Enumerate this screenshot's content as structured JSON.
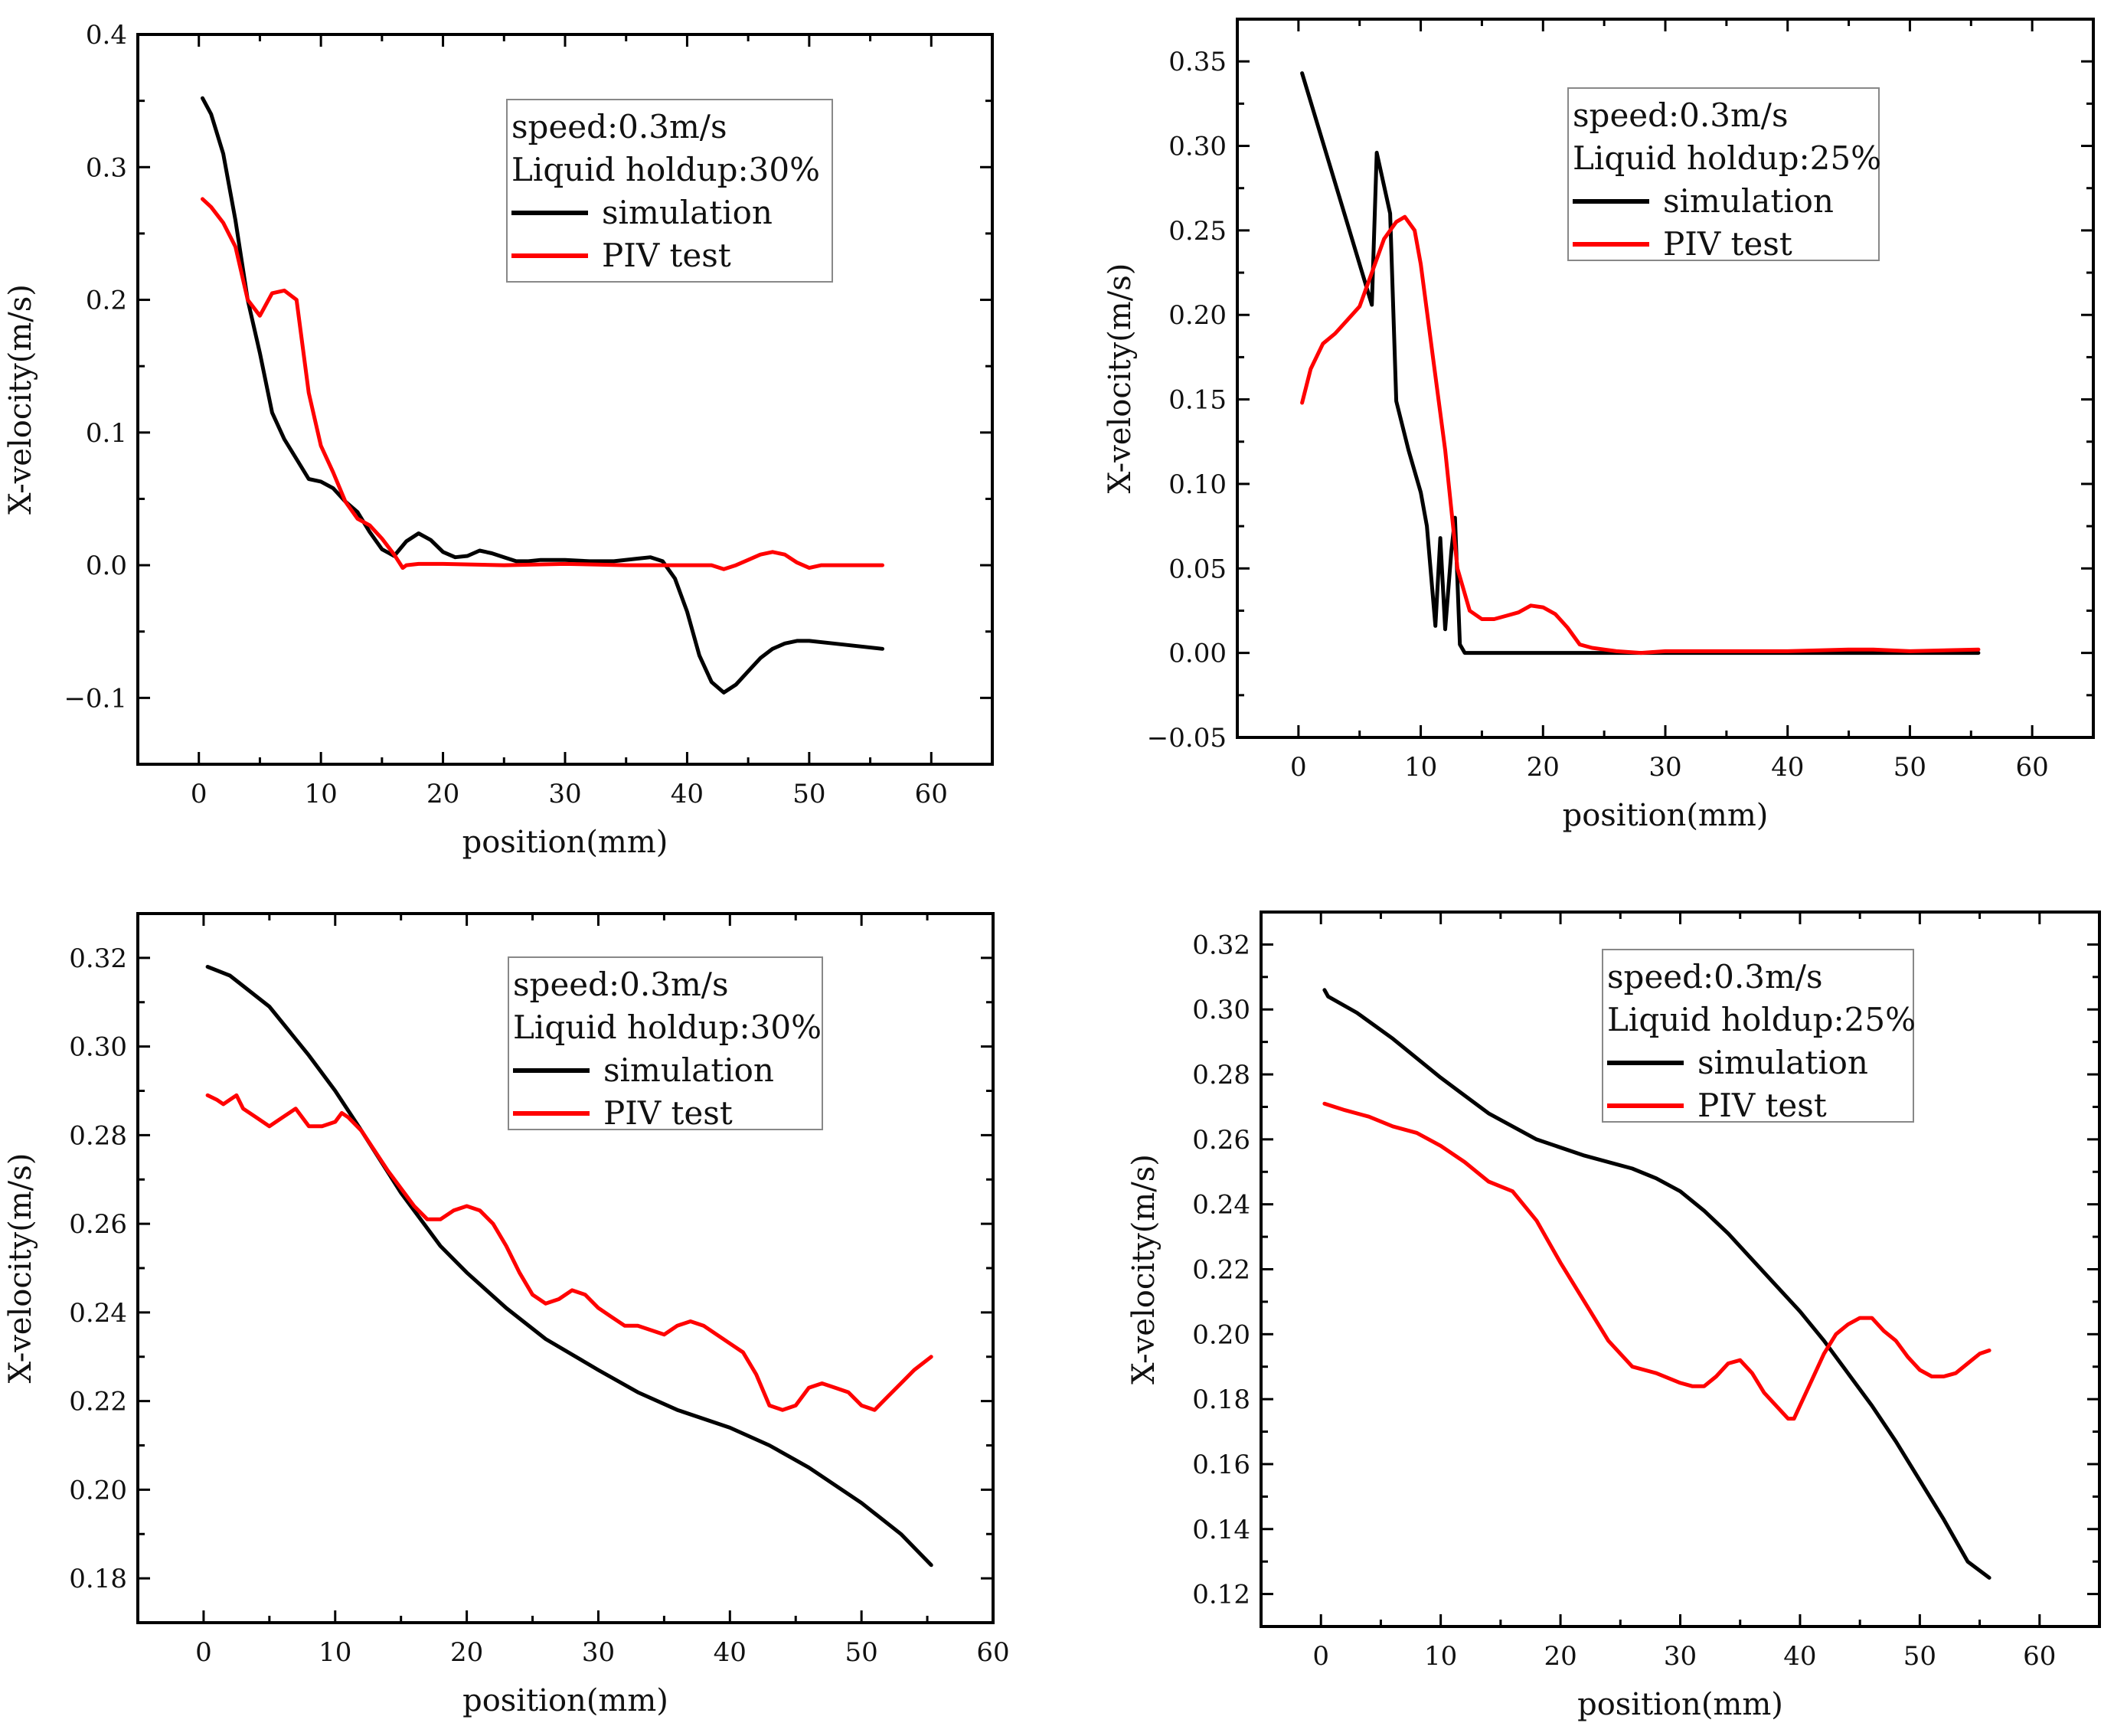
{
  "colors": {
    "simulation": "#000000",
    "piv": "#ff0000",
    "axis": "#000000",
    "legend_border": "#888888"
  },
  "chart_data": [
    {
      "type": "line",
      "xlabel": "position(mm)",
      "ylabel": "X-velocity(m/s)",
      "xlim": [
        -5,
        65
      ],
      "ylim": [
        -0.15,
        0.4
      ],
      "xticks": [
        0,
        10,
        20,
        30,
        40,
        50,
        60
      ],
      "xtick_labels": [
        "0",
        "10",
        "20",
        "30",
        "40",
        "50",
        "60"
      ],
      "yticks": [
        -0.1,
        0.0,
        0.1,
        0.2,
        0.3,
        0.4
      ],
      "ytick_labels": [
        "−0.1",
        "0.0",
        "0.1",
        "0.2",
        "0.3",
        "0.4"
      ],
      "legend": {
        "lines": [
          "speed:0.3m/s",
          "Liquid holdup:30%"
        ],
        "entries": [
          "simulation",
          "PIV test"
        ],
        "position": "top-right"
      },
      "series": [
        {
          "name": "simulation",
          "color": "#000000",
          "x": [
            0.3,
            1,
            2,
            3,
            4,
            5,
            6,
            7,
            8,
            9,
            10,
            11,
            12,
            13,
            14,
            15,
            16,
            17,
            18,
            19,
            20,
            21,
            22,
            23,
            24,
            25,
            26,
            27,
            28,
            30,
            32,
            34,
            36,
            37,
            38,
            39,
            40,
            41,
            42,
            43,
            44,
            45,
            46,
            47,
            48,
            49,
            50,
            52,
            54,
            56
          ],
          "y": [
            0.352,
            0.34,
            0.31,
            0.26,
            0.2,
            0.16,
            0.115,
            0.095,
            0.08,
            0.065,
            0.063,
            0.058,
            0.048,
            0.04,
            0.025,
            0.012,
            0.007,
            0.018,
            0.024,
            0.019,
            0.01,
            0.006,
            0.007,
            0.011,
            0.009,
            0.006,
            0.003,
            0.003,
            0.004,
            0.004,
            0.003,
            0.003,
            0.005,
            0.006,
            0.003,
            -0.01,
            -0.035,
            -0.068,
            -0.088,
            -0.096,
            -0.09,
            -0.08,
            -0.07,
            -0.063,
            -0.059,
            -0.057,
            -0.057,
            -0.059,
            -0.061,
            -0.063
          ]
        },
        {
          "name": "PIV test",
          "color": "#ff0000",
          "x": [
            0.3,
            1,
            2,
            3,
            4,
            5,
            6,
            7,
            8,
            9,
            10,
            11,
            12,
            13,
            14,
            15,
            16,
            16.7,
            17,
            18,
            20,
            25,
            30,
            35,
            38,
            40,
            42,
            43,
            44,
            45,
            46,
            47,
            48,
            49,
            50,
            51,
            52,
            54,
            56
          ],
          "y": [
            0.276,
            0.27,
            0.258,
            0.24,
            0.2,
            0.188,
            0.205,
            0.207,
            0.2,
            0.13,
            0.09,
            0.07,
            0.048,
            0.035,
            0.03,
            0.02,
            0.008,
            -0.002,
            0.0,
            0.001,
            0.001,
            0.0,
            0.001,
            0.0,
            0.0,
            0.0,
            0.0,
            -0.003,
            0.0,
            0.004,
            0.008,
            0.01,
            0.008,
            0.002,
            -0.002,
            0.0,
            0.0,
            0.0,
            0.0
          ]
        }
      ]
    },
    {
      "type": "line",
      "xlabel": "position(mm)",
      "ylabel": "X-velocity(m/s)",
      "xlim": [
        -5,
        65
      ],
      "ylim": [
        -0.05,
        0.375
      ],
      "xticks": [
        0,
        10,
        20,
        30,
        40,
        50,
        60
      ],
      "xtick_labels": [
        "0",
        "10",
        "20",
        "30",
        "40",
        "50",
        "60"
      ],
      "yticks": [
        -0.05,
        0.0,
        0.05,
        0.1,
        0.15,
        0.2,
        0.25,
        0.3,
        0.35
      ],
      "ytick_labels": [
        "−0.05",
        "0.00",
        "0.05",
        "0.10",
        "0.15",
        "0.20",
        "0.25",
        "0.30",
        "0.35"
      ],
      "legend": {
        "lines": [
          "speed:0.3m/s",
          "Liquid holdup:25%"
        ],
        "entries": [
          "simulation",
          "PIV test"
        ],
        "position": "top-right"
      },
      "series": [
        {
          "name": "simulation",
          "color": "#000000",
          "x": [
            0.3,
            6.0,
            6.4,
            7.5,
            8.0,
            9.0,
            10.0,
            10.5,
            11.2,
            11.6,
            12.0,
            12.5,
            12.8,
            13.2,
            13.6,
            20,
            30,
            40,
            50,
            55.6
          ],
          "y": [
            0.343,
            0.206,
            0.296,
            0.26,
            0.149,
            0.12,
            0.095,
            0.075,
            0.016,
            0.068,
            0.014,
            0.06,
            0.08,
            0.005,
            0.0,
            0.0,
            0.0,
            0.0,
            0.0,
            0.0
          ]
        },
        {
          "name": "PIV test",
          "color": "#ff0000",
          "x": [
            0.3,
            1,
            2,
            3,
            4,
            5,
            6,
            7,
            8,
            8.7,
            9.5,
            10,
            11,
            12,
            12.5,
            13,
            14,
            15,
            16,
            17,
            18,
            19,
            20,
            21,
            22,
            23,
            24,
            25,
            26,
            28,
            30,
            40,
            45,
            47,
            50,
            55.6
          ],
          "y": [
            0.148,
            0.168,
            0.183,
            0.189,
            0.197,
            0.205,
            0.225,
            0.245,
            0.255,
            0.258,
            0.25,
            0.23,
            0.175,
            0.12,
            0.085,
            0.05,
            0.025,
            0.02,
            0.02,
            0.022,
            0.024,
            0.028,
            0.027,
            0.023,
            0.015,
            0.005,
            0.003,
            0.002,
            0.001,
            0.0,
            0.001,
            0.001,
            0.002,
            0.002,
            0.001,
            0.002
          ]
        }
      ]
    },
    {
      "type": "line",
      "xlabel": "position(mm)",
      "ylabel": "X-velocity(m/s)",
      "xlim": [
        -5,
        60
      ],
      "ylim": [
        0.17,
        0.33
      ],
      "xticks": [
        0,
        10,
        20,
        30,
        40,
        50,
        60
      ],
      "xtick_labels": [
        "0",
        "10",
        "20",
        "30",
        "40",
        "50",
        "60"
      ],
      "yticks": [
        0.18,
        0.2,
        0.22,
        0.24,
        0.26,
        0.28,
        0.3,
        0.32
      ],
      "ytick_labels": [
        "0.18",
        "0.20",
        "0.22",
        "0.24",
        "0.26",
        "0.28",
        "0.30",
        "0.32"
      ],
      "legend": {
        "lines": [
          "speed:0.3m/s",
          "Liquid holdup:30%"
        ],
        "entries": [
          "simulation",
          "PIV test"
        ],
        "position": "top-right"
      },
      "series": [
        {
          "name": "simulation",
          "color": "#000000",
          "x": [
            0.3,
            2,
            5,
            8,
            10,
            12,
            15,
            18,
            20,
            23,
            26,
            30,
            33,
            36,
            40,
            43,
            46,
            50,
            53,
            55.3
          ],
          "y": [
            0.318,
            0.316,
            0.309,
            0.298,
            0.29,
            0.281,
            0.267,
            0.255,
            0.249,
            0.241,
            0.234,
            0.227,
            0.222,
            0.218,
            0.214,
            0.21,
            0.205,
            0.197,
            0.19,
            0.183
          ]
        },
        {
          "name": "PIV test",
          "color": "#ff0000",
          "x": [
            0.3,
            1,
            1.5,
            2,
            2.5,
            3,
            4,
            5,
            6,
            7,
            8,
            9,
            10,
            10.5,
            11,
            12,
            14,
            16,
            17,
            18,
            19,
            20,
            21,
            22,
            23,
            24,
            25,
            26,
            27,
            28,
            29,
            30,
            31,
            32,
            33,
            34,
            35,
            36,
            37,
            38,
            39,
            40,
            41,
            42,
            43,
            44,
            45,
            46,
            47,
            48,
            49,
            50,
            51,
            52,
            53,
            54,
            55.3
          ],
          "y": [
            0.289,
            0.288,
            0.287,
            0.288,
            0.289,
            0.286,
            0.284,
            0.282,
            0.284,
            0.286,
            0.282,
            0.282,
            0.283,
            0.285,
            0.284,
            0.281,
            0.272,
            0.264,
            0.261,
            0.261,
            0.263,
            0.264,
            0.263,
            0.26,
            0.255,
            0.249,
            0.244,
            0.242,
            0.243,
            0.245,
            0.244,
            0.241,
            0.239,
            0.237,
            0.237,
            0.236,
            0.235,
            0.237,
            0.238,
            0.237,
            0.235,
            0.233,
            0.231,
            0.226,
            0.219,
            0.218,
            0.219,
            0.223,
            0.224,
            0.223,
            0.222,
            0.219,
            0.218,
            0.221,
            0.224,
            0.227,
            0.23
          ]
        }
      ]
    },
    {
      "type": "line",
      "xlabel": "position(mm)",
      "ylabel": "X-velocity(m/s)",
      "xlim": [
        -5,
        65
      ],
      "ylim": [
        0.11,
        0.33
      ],
      "xticks": [
        0,
        10,
        20,
        30,
        40,
        50,
        60
      ],
      "xtick_labels": [
        "0",
        "10",
        "20",
        "30",
        "40",
        "50",
        "60"
      ],
      "yticks": [
        0.12,
        0.14,
        0.16,
        0.18,
        0.2,
        0.22,
        0.24,
        0.26,
        0.28,
        0.3,
        0.32
      ],
      "ytick_labels": [
        "0.12",
        "0.14",
        "0.16",
        "0.18",
        "0.20",
        "0.22",
        "0.24",
        "0.26",
        "0.28",
        "0.30",
        "0.32"
      ],
      "legend": {
        "lines": [
          "speed:0.3m/s",
          "Liquid holdup:25%"
        ],
        "entries": [
          "simulation",
          "PIV test"
        ],
        "position": "top-right"
      },
      "series": [
        {
          "name": "simulation",
          "color": "#000000",
          "x": [
            0.3,
            0.6,
            3,
            6,
            10,
            14,
            18,
            22,
            26,
            28,
            30,
            32,
            34,
            36,
            38,
            40,
            42,
            44,
            46,
            48,
            50,
            52,
            54,
            55.8
          ],
          "y": [
            0.306,
            0.304,
            0.299,
            0.291,
            0.279,
            0.268,
            0.26,
            0.255,
            0.251,
            0.248,
            0.244,
            0.238,
            0.231,
            0.223,
            0.215,
            0.207,
            0.198,
            0.188,
            0.178,
            0.167,
            0.155,
            0.143,
            0.13,
            0.125
          ]
        },
        {
          "name": "PIV test",
          "color": "#ff0000",
          "x": [
            0.3,
            2,
            4,
            6,
            8,
            10,
            12,
            14,
            16,
            18,
            20,
            22,
            24,
            26,
            28,
            30,
            31,
            32,
            33,
            34,
            35,
            36,
            37,
            38,
            39,
            39.5,
            40,
            41,
            42,
            43,
            44,
            45,
            46,
            47,
            48,
            49,
            50,
            51,
            52,
            53,
            54,
            55,
            55.8
          ],
          "y": [
            0.271,
            0.269,
            0.267,
            0.264,
            0.262,
            0.258,
            0.253,
            0.247,
            0.244,
            0.235,
            0.222,
            0.21,
            0.198,
            0.19,
            0.188,
            0.185,
            0.184,
            0.184,
            0.187,
            0.191,
            0.192,
            0.188,
            0.182,
            0.178,
            0.174,
            0.174,
            0.178,
            0.186,
            0.194,
            0.2,
            0.203,
            0.205,
            0.205,
            0.201,
            0.198,
            0.193,
            0.189,
            0.187,
            0.187,
            0.188,
            0.191,
            0.194,
            0.195
          ]
        }
      ]
    }
  ]
}
